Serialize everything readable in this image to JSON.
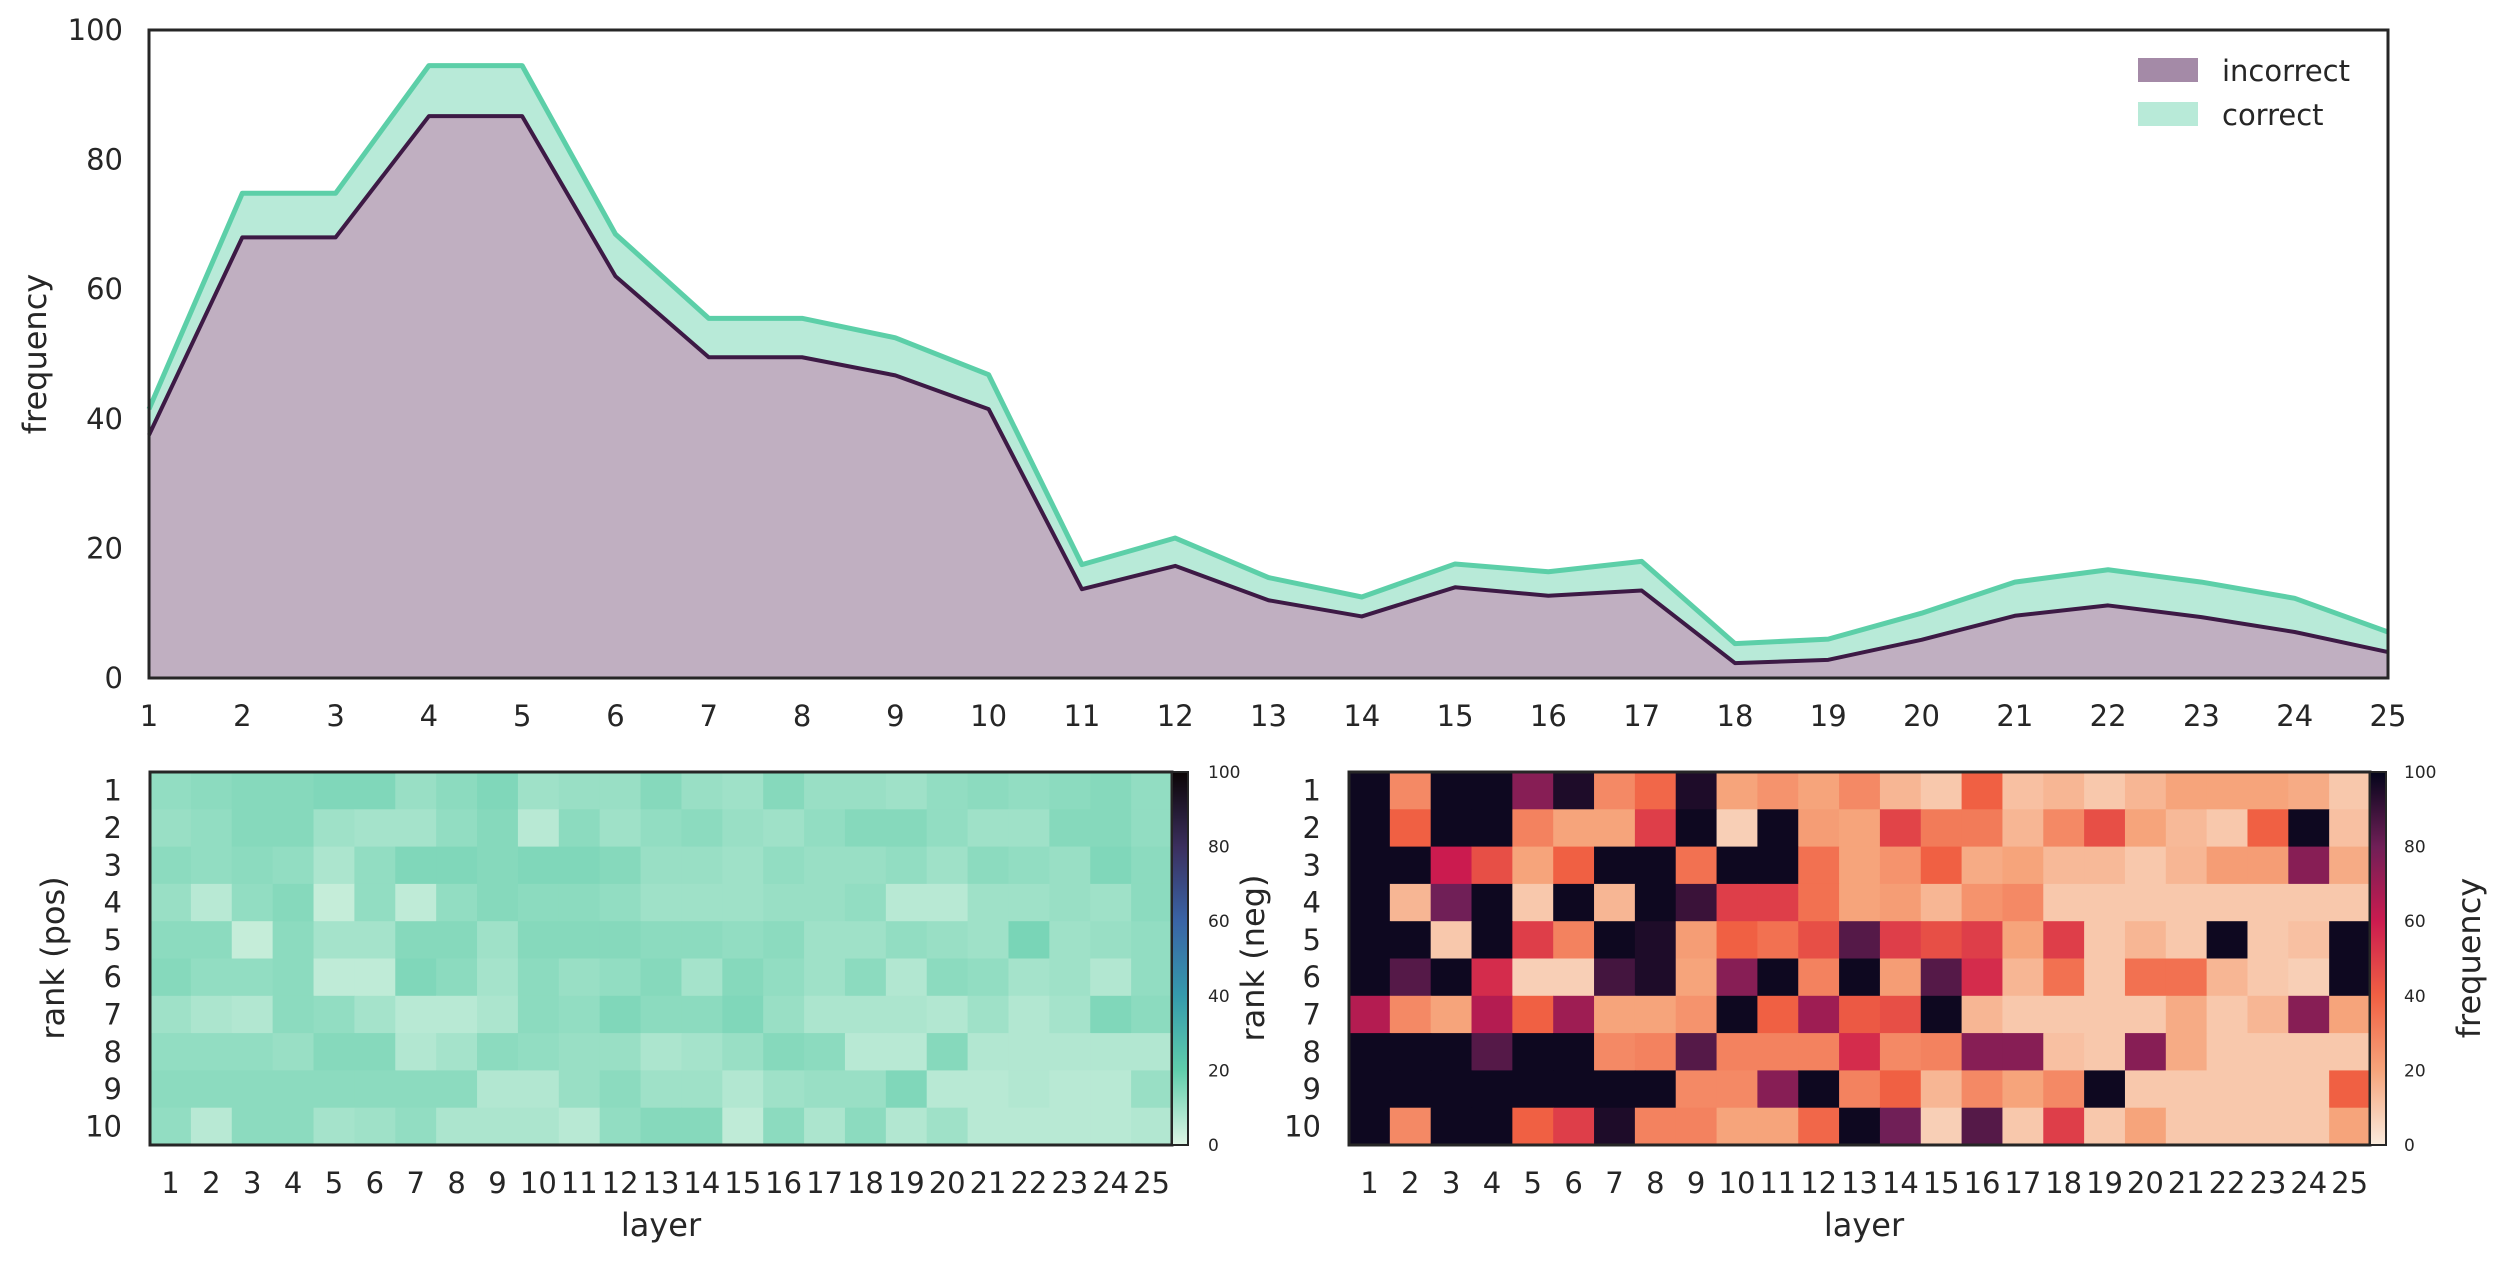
{
  "colors": {
    "incorrect_fill": "#c0afc1",
    "incorrect_line": "#3d1a45",
    "correct_fill": "#b8ead8",
    "correct_line": "#5ccfa8",
    "axis": "#262626"
  },
  "chart_data": [
    {
      "type": "area",
      "stacked": true,
      "title": "",
      "xlabel": "",
      "ylabel": "frequency",
      "xlim": [
        1,
        25
      ],
      "ylim": [
        0,
        100
      ],
      "x": [
        1,
        2,
        3,
        4,
        5,
        6,
        7,
        8,
        9,
        10,
        11,
        12,
        13,
        14,
        15,
        16,
        17,
        18,
        19,
        20,
        21,
        22,
        23,
        24,
        25
      ],
      "xticks": [
        "1",
        "2",
        "3",
        "4",
        "5",
        "6",
        "7",
        "8",
        "9",
        "10",
        "11",
        "12",
        "13",
        "14",
        "15",
        "16",
        "17",
        "18",
        "19",
        "20",
        "21",
        "22",
        "23",
        "24",
        "25"
      ],
      "yticks": [
        "0",
        "20",
        "40",
        "60",
        "80",
        "100"
      ],
      "legend_position": "top-right",
      "series": [
        {
          "name": "incorrect",
          "values": [
            37.5,
            68,
            68,
            86.7,
            86.7,
            62,
            49.5,
            49.5,
            46.7,
            41.5,
            13.7,
            17.3,
            12,
            9.5,
            14,
            12.7,
            13.5,
            2.3,
            2.8,
            5.9,
            9.6,
            11.2,
            9.4,
            7.1,
            4
          ]
        },
        {
          "name": "correct",
          "values": [
            4,
            6.8,
            6.8,
            7.8,
            7.8,
            6.5,
            6,
            6,
            5.8,
            5.3,
            3.8,
            4.3,
            3.5,
            3,
            3.6,
            3.7,
            4.5,
            3,
            3.2,
            4.1,
            5.2,
            5.5,
            5.4,
            5.2,
            3.1
          ]
        }
      ]
    },
    {
      "type": "heatmap",
      "title": "",
      "xlabel": "layer",
      "ylabel": "rank (pos)",
      "colormap": "mako",
      "vmin": 0,
      "vmax": 100,
      "x": [
        "1",
        "2",
        "3",
        "4",
        "5",
        "6",
        "7",
        "8",
        "9",
        "10",
        "11",
        "12",
        "13",
        "14",
        "15",
        "16",
        "17",
        "18",
        "19",
        "20",
        "21",
        "22",
        "23",
        "24",
        "25"
      ],
      "y": [
        "1",
        "2",
        "3",
        "4",
        "5",
        "6",
        "7",
        "8",
        "9",
        "10"
      ],
      "colorbar_ticks": [
        "0",
        "20",
        "40",
        "60",
        "80",
        "100"
      ],
      "values": [
        [
          12,
          13,
          14,
          14,
          15,
          15,
          11,
          13,
          15,
          10,
          11,
          11,
          14,
          11,
          10,
          14,
          11,
          11,
          10,
          12,
          13,
          12,
          13,
          14,
          12
        ],
        [
          11,
          12,
          14,
          14,
          10,
          9,
          9,
          12,
          14,
          6,
          13,
          10,
          12,
          13,
          11,
          10,
          12,
          14,
          14,
          12,
          10,
          10,
          14,
          14,
          12
        ],
        [
          13,
          12,
          13,
          12,
          8,
          12,
          15,
          15,
          14,
          15,
          15,
          14,
          11,
          11,
          10,
          12,
          11,
          11,
          12,
          10,
          13,
          12,
          11,
          15,
          13
        ],
        [
          11,
          6,
          12,
          14,
          4,
          12,
          5,
          12,
          14,
          13,
          13,
          12,
          10,
          10,
          10,
          11,
          11,
          12,
          6,
          6,
          10,
          10,
          11,
          10,
          13
        ],
        [
          13,
          13,
          4,
          13,
          9,
          9,
          14,
          14,
          10,
          14,
          14,
          14,
          13,
          13,
          12,
          13,
          10,
          10,
          12,
          11,
          10,
          16,
          10,
          11,
          12
        ],
        [
          14,
          12,
          12,
          13,
          5,
          5,
          15,
          13,
          9,
          13,
          11,
          12,
          14,
          9,
          14,
          12,
          10,
          13,
          7,
          13,
          12,
          9,
          10,
          7,
          12
        ],
        [
          10,
          8,
          7,
          13,
          12,
          9,
          6,
          6,
          8,
          13,
          12,
          15,
          13,
          13,
          15,
          11,
          8,
          8,
          8,
          7,
          10,
          7,
          9,
          15,
          13
        ],
        [
          12,
          12,
          12,
          11,
          14,
          14,
          7,
          9,
          13,
          12,
          11,
          11,
          8,
          9,
          11,
          14,
          13,
          6,
          6,
          14,
          7,
          7,
          7,
          7,
          7
        ],
        [
          13,
          13,
          13,
          13,
          13,
          13,
          13,
          13,
          7,
          7,
          11,
          13,
          10,
          10,
          7,
          10,
          11,
          11,
          15,
          6,
          6,
          7,
          6,
          6,
          11
        ],
        [
          12,
          6,
          13,
          13,
          9,
          10,
          12,
          8,
          8,
          8,
          6,
          12,
          14,
          14,
          5,
          13,
          8,
          13,
          7,
          10,
          6,
          6,
          6,
          6,
          7
        ]
      ]
    },
    {
      "type": "heatmap",
      "title": "",
      "xlabel": "layer",
      "ylabel": "rank (neg)",
      "colormap": "rocket",
      "vmin": 0,
      "vmax": 100,
      "colorbar_label": "frequency",
      "x": [
        "1",
        "2",
        "3",
        "4",
        "5",
        "6",
        "7",
        "8",
        "9",
        "10",
        "11",
        "12",
        "13",
        "14",
        "15",
        "16",
        "17",
        "18",
        "19",
        "20",
        "21",
        "22",
        "23",
        "24",
        "25"
      ],
      "y": [
        "1",
        "2",
        "3",
        "4",
        "5",
        "6",
        "7",
        "8",
        "9",
        "10"
      ],
      "colorbar_ticks": [
        "0",
        "20",
        "40",
        "60",
        "80",
        "100"
      ],
      "values": [
        [
          98,
          28,
          98,
          98,
          75,
          95,
          28,
          38,
          95,
          20,
          25,
          20,
          28,
          15,
          10,
          40,
          12,
          15,
          10,
          15,
          20,
          20,
          20,
          18,
          10
        ],
        [
          98,
          40,
          98,
          98,
          30,
          20,
          20,
          50,
          98,
          8,
          98,
          22,
          20,
          48,
          32,
          32,
          15,
          28,
          45,
          20,
          14,
          10,
          40,
          98,
          12
        ],
        [
          98,
          98,
          60,
          45,
          20,
          40,
          98,
          98,
          35,
          98,
          98,
          35,
          20,
          25,
          40,
          18,
          20,
          14,
          14,
          10,
          15,
          22,
          22,
          75,
          18
        ],
        [
          98,
          15,
          80,
          98,
          10,
          98,
          15,
          98,
          90,
          50,
          50,
          35,
          20,
          22,
          15,
          25,
          28,
          10,
          10,
          10,
          10,
          10,
          10,
          10,
          10
        ],
        [
          98,
          98,
          10,
          98,
          50,
          30,
          98,
          95,
          22,
          40,
          35,
          45,
          85,
          50,
          45,
          50,
          20,
          50,
          10,
          15,
          10,
          98,
          10,
          12,
          98
        ],
        [
          98,
          85,
          98,
          55,
          8,
          8,
          88,
          95,
          20,
          75,
          98,
          30,
          98,
          22,
          85,
          55,
          15,
          35,
          10,
          35,
          35,
          15,
          10,
          8,
          98
        ],
        [
          65,
          28,
          20,
          65,
          40,
          70,
          20,
          20,
          25,
          98,
          40,
          70,
          42,
          45,
          98,
          15,
          10,
          10,
          10,
          10,
          18,
          10,
          15,
          75,
          20
        ],
        [
          98,
          98,
          98,
          85,
          98,
          98,
          28,
          30,
          85,
          30,
          30,
          30,
          55,
          28,
          30,
          75,
          75,
          12,
          10,
          75,
          18,
          10,
          10,
          10,
          10
        ],
        [
          98,
          98,
          98,
          98,
          98,
          98,
          98,
          98,
          28,
          28,
          75,
          98,
          30,
          40,
          15,
          28,
          20,
          28,
          98,
          10,
          10,
          10,
          10,
          10,
          40
        ],
        [
          98,
          28,
          98,
          98,
          40,
          50,
          95,
          30,
          30,
          20,
          20,
          38,
          98,
          80,
          8,
          85,
          10,
          50,
          10,
          20,
          10,
          10,
          10,
          10,
          20
        ]
      ]
    }
  ]
}
